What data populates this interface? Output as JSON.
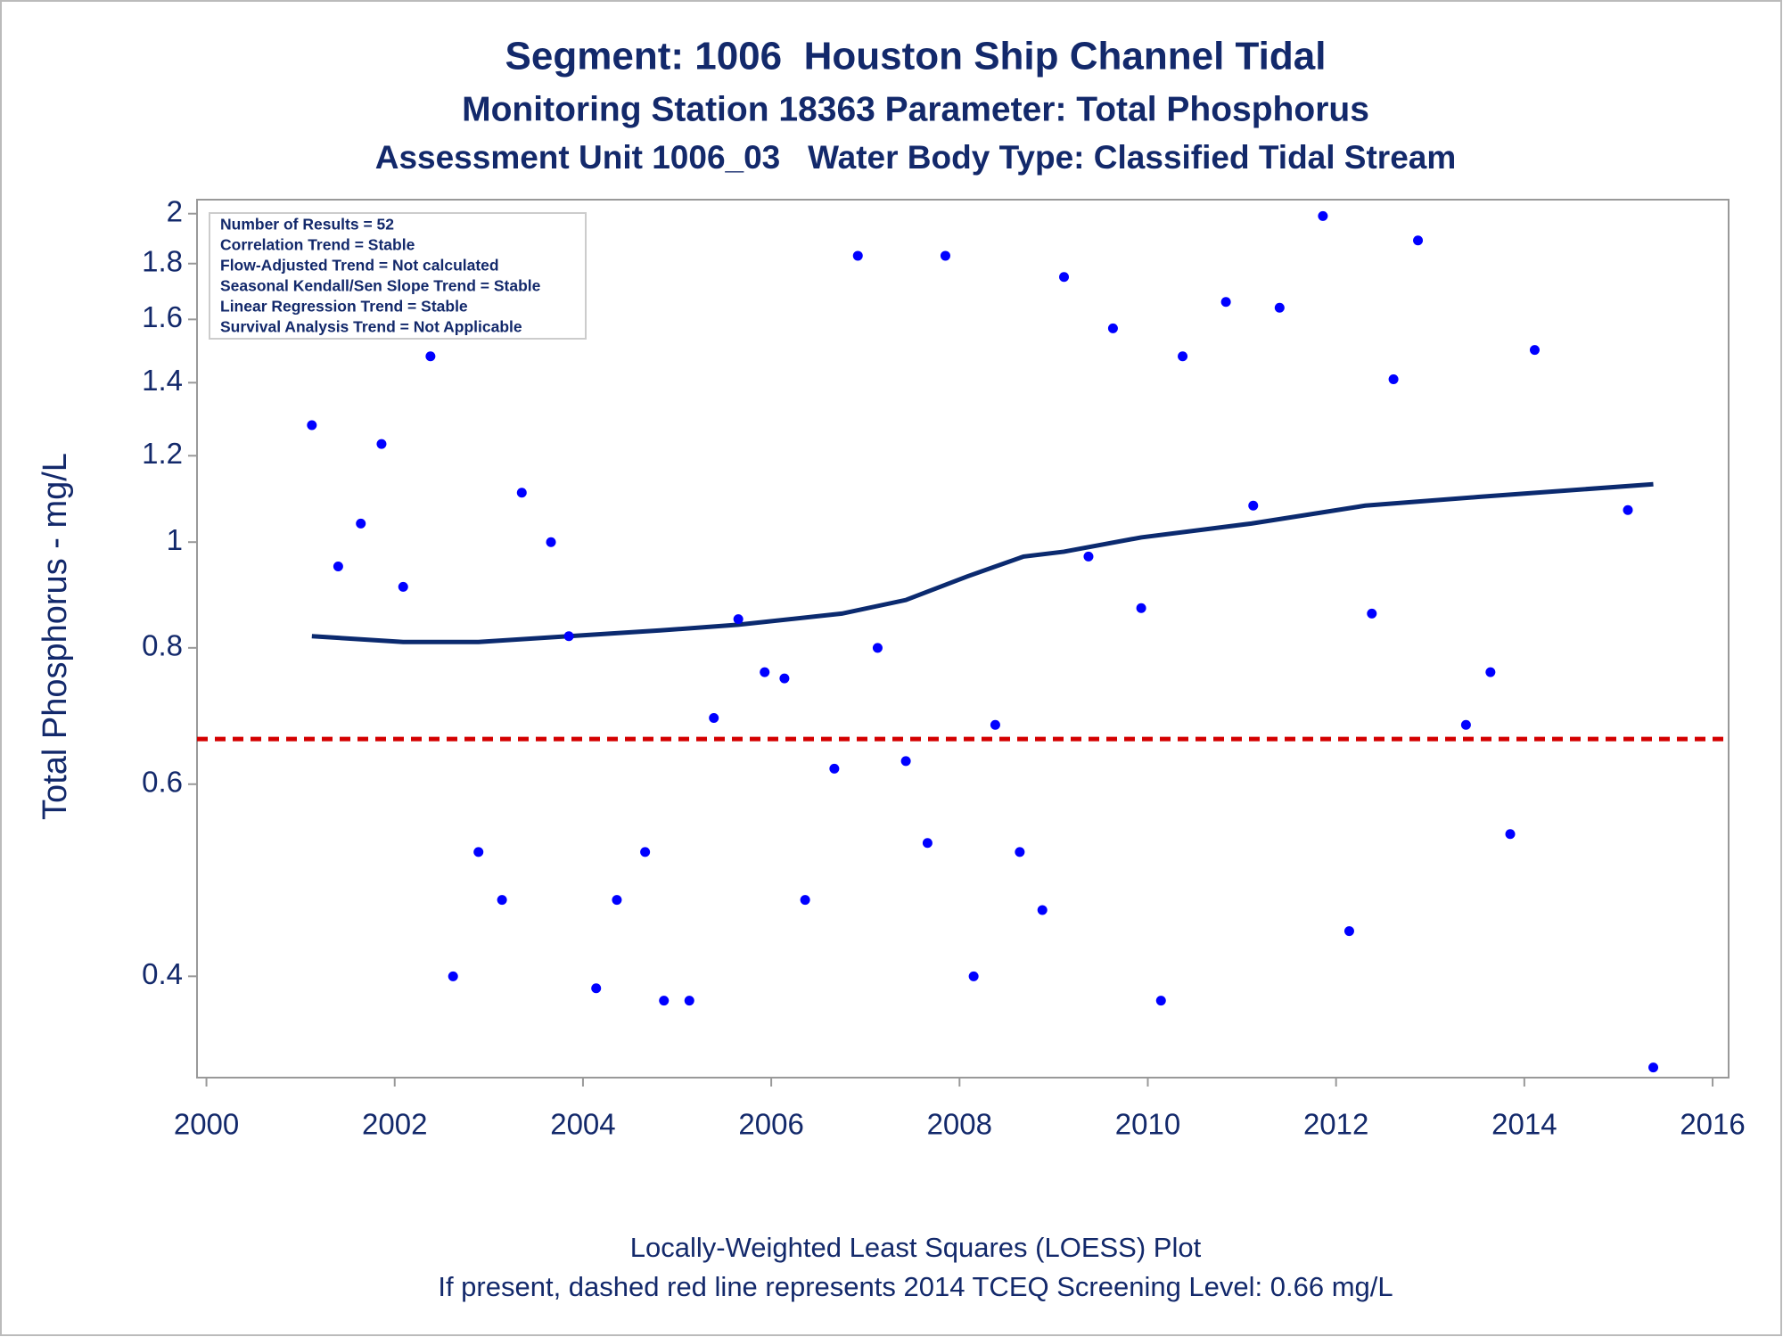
{
  "chart_data": {
    "type": "scatter",
    "title": "Segment: 1006  Houston Ship Channel Tidal",
    "subtitles": [
      "Monitoring Station 18363 Parameter: Total Phosphorus",
      "Assessment Unit 1006_03   Water Body Type: Classified Tidal Stream"
    ],
    "y_label": "Total Phosphorus - mg/L",
    "stats_box": [
      "Number of Results = 52",
      "Correlation Trend = Stable",
      "Flow-Adjusted Trend = Not calculated",
      "Seasonal Kendall/Sen Slope Trend = Stable",
      "Linear Regression Trend = Stable",
      "Survival Analysis Trend = Not Applicable"
    ],
    "footnotes": [
      "Locally-Weighted Least Squares (LOESS) Plot",
      "If present, dashed red line represents 2014 TCEQ Screening Level: 0.66 mg/L"
    ],
    "xlim": [
      1999.9,
      2016.17
    ],
    "xticks": [
      2000,
      2002,
      2004,
      2006,
      2008,
      2010,
      2012,
      2014,
      2016
    ],
    "ylim": [
      0.323,
      2.06
    ],
    "yticks": [
      0.4,
      0.6,
      0.8,
      1,
      1.2,
      1.4,
      1.6,
      1.8,
      2
    ],
    "y_scale": "log",
    "series": [
      {
        "type": "scatter",
        "color": "#0000ff",
        "x": [
          2001.12,
          2001.4,
          2001.64,
          2001.86,
          2002.09,
          2002.38,
          2002.62,
          2002.89,
          2003.14,
          2003.35,
          2003.66,
          2003.85,
          2004.14,
          2004.36,
          2004.66,
          2004.86,
          2005.13,
          2005.39,
          2005.65,
          2005.93,
          2006.14,
          2006.36,
          2006.67,
          2006.92,
          2007.13,
          2007.43,
          2007.66,
          2007.85,
          2008.15,
          2008.38,
          2008.64,
          2008.88,
          2009.11,
          2009.37,
          2009.63,
          2009.93,
          2010.14,
          2010.37,
          2010.83,
          2011.12,
          2011.4,
          2011.86,
          2012.14,
          2012.38,
          2012.61,
          2012.87,
          2013.38,
          2013.64,
          2013.85,
          2014.11,
          2015.1,
          2015.37
        ],
        "values": [
          1.28,
          0.95,
          1.04,
          1.23,
          0.91,
          1.48,
          0.4,
          0.52,
          0.47,
          1.11,
          1.0,
          0.82,
          0.39,
          0.47,
          0.52,
          0.38,
          0.38,
          0.69,
          0.85,
          0.76,
          0.75,
          0.47,
          0.62,
          1.83,
          0.8,
          0.63,
          0.53,
          1.83,
          0.4,
          0.68,
          0.52,
          0.46,
          1.75,
          0.97,
          1.57,
          0.87,
          0.38,
          1.48,
          1.66,
          1.08,
          1.64,
          1.99,
          0.44,
          0.86,
          1.41,
          1.89,
          0.68,
          0.76,
          0.54,
          1.5,
          1.07,
          0.33
        ]
      },
      {
        "type": "line",
        "color": "#0b2a6f",
        "x": [
          2001.12,
          2002.09,
          2002.89,
          2003.85,
          2004.82,
          2005.65,
          2006.75,
          2007.43,
          2008.08,
          2008.68,
          2009.11,
          2009.93,
          2011.1,
          2012.31,
          2013.51,
          2015.37
        ],
        "values": [
          0.82,
          0.81,
          0.81,
          0.82,
          0.83,
          0.84,
          0.86,
          0.885,
          0.93,
          0.97,
          0.98,
          1.01,
          1.04,
          1.08,
          1.1,
          1.13
        ]
      }
    ],
    "reference_lines": [
      {
        "value": 0.66,
        "color": "#d40000",
        "dashed": true
      }
    ]
  }
}
